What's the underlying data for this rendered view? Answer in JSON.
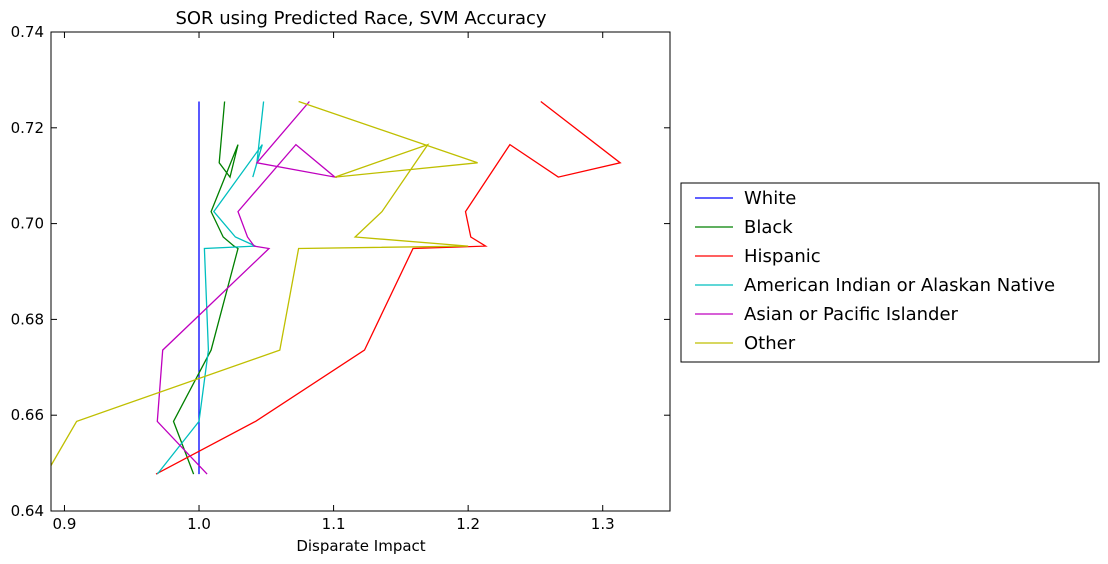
{
  "chart_data": {
    "type": "line",
    "title": "SOR using Predicted Race, SVM Accuracy",
    "xlabel": "Disparate Impact",
    "ylabel": "",
    "xlim": [
      0.89,
      1.35
    ],
    "ylim": [
      0.64,
      0.74
    ],
    "xticks": [
      0.9,
      1.0,
      1.1,
      1.2,
      1.3
    ],
    "xtick_labels": [
      "0.9",
      "1.0",
      "1.1",
      "1.2",
      "1.3"
    ],
    "yticks": [
      0.64,
      0.66,
      0.68,
      0.7,
      0.72,
      0.74
    ],
    "ytick_labels": [
      "0.64",
      "0.66",
      "0.68",
      "0.70",
      "0.72",
      "0.74"
    ],
    "grid": false,
    "legend_position": "right, outside plot",
    "series": [
      {
        "name": "White",
        "color": "#0000ff",
        "x": [
          1.0,
          1.0,
          1.0,
          1.0,
          1.0,
          1.0,
          1.0,
          1.0,
          1.0,
          1.0,
          1.0,
          1.0
        ],
        "y": [
          0.7255,
          0.7127,
          0.7097,
          0.7165,
          0.7025,
          0.6972,
          0.6953,
          0.6948,
          0.6736,
          0.6587,
          0.6477,
          0.6477
        ]
      },
      {
        "name": "Black",
        "color": "#008000",
        "x": [
          1.019,
          1.015,
          1.023,
          1.029,
          1.009,
          1.018,
          1.026,
          1.029,
          1.009,
          0.981,
          0.996,
          0.996
        ],
        "y": [
          0.7255,
          0.7127,
          0.7097,
          0.7165,
          0.7025,
          0.6972,
          0.6953,
          0.6948,
          0.6736,
          0.6587,
          0.6477,
          0.6477
        ]
      },
      {
        "name": "Hispanic",
        "color": "#ff0000",
        "x": [
          1.254,
          1.313,
          1.267,
          1.231,
          1.198,
          1.202,
          1.213,
          1.159,
          1.123,
          1.042,
          0.968,
          0.968
        ],
        "y": [
          0.7255,
          0.7127,
          0.7097,
          0.7165,
          0.7025,
          0.6972,
          0.6953,
          0.6948,
          0.6736,
          0.6587,
          0.6477,
          0.6477
        ]
      },
      {
        "name": "American Indian or Alaskan Native",
        "color": "#00bfbf",
        "x": [
          1.048,
          1.043,
          1.04,
          1.047,
          1.011,
          1.027,
          1.042,
          1.004,
          1.007,
          1.0,
          0.969,
          0.969
        ],
        "y": [
          0.7255,
          0.7127,
          0.7097,
          0.7165,
          0.7025,
          0.6972,
          0.6953,
          0.6948,
          0.6736,
          0.6587,
          0.6477,
          0.6477
        ]
      },
      {
        "name": "Asian or Pacific Islander",
        "color": "#bf00bf",
        "x": [
          1.082,
          1.043,
          1.101,
          1.072,
          1.029,
          1.036,
          1.041,
          1.052,
          0.973,
          0.969,
          1.006,
          1.006
        ],
        "y": [
          0.7255,
          0.7127,
          0.7097,
          0.7165,
          0.7025,
          0.6972,
          0.6953,
          0.6948,
          0.6736,
          0.6587,
          0.6477,
          0.6477
        ]
      },
      {
        "name": "Other",
        "color": "#bfbf00",
        "x": [
          1.074,
          1.207,
          1.101,
          1.17,
          1.136,
          1.116,
          1.2,
          1.074,
          1.06,
          0.909,
          0.89,
          0.89
        ],
        "y": [
          0.7255,
          0.7127,
          0.7097,
          0.7165,
          0.7025,
          0.6972,
          0.6953,
          0.6948,
          0.6736,
          0.6587,
          0.6495,
          0.6495
        ]
      }
    ]
  }
}
